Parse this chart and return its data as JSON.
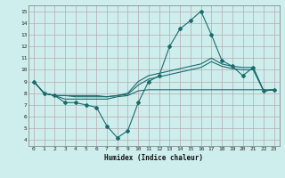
{
  "title": "",
  "xlabel": "Humidex (Indice chaleur)",
  "ylabel": "",
  "bg_color": "#ceeeed",
  "grid_color": "#b8a8b0",
  "line_color": "#1a6b6b",
  "xlim": [
    -0.5,
    23.5
  ],
  "ylim": [
    3.5,
    15.5
  ],
  "xticks": [
    0,
    1,
    2,
    3,
    4,
    5,
    6,
    7,
    8,
    9,
    10,
    11,
    12,
    13,
    14,
    15,
    16,
    17,
    18,
    19,
    20,
    21,
    22,
    23
  ],
  "yticks": [
    4,
    5,
    6,
    7,
    8,
    9,
    10,
    11,
    12,
    13,
    14,
    15
  ],
  "line1_x": [
    0,
    1,
    2,
    3,
    4,
    5,
    6,
    7,
    8,
    9,
    10,
    11,
    12,
    13,
    14,
    15,
    16,
    17,
    18,
    19,
    20,
    21,
    22,
    23
  ],
  "line1_y": [
    9.0,
    8.0,
    7.8,
    7.2,
    7.2,
    7.0,
    6.8,
    5.2,
    4.2,
    4.8,
    7.2,
    9.0,
    9.5,
    12.0,
    13.5,
    14.2,
    15.0,
    13.0,
    10.8,
    10.3,
    9.5,
    10.2,
    8.2,
    8.3
  ],
  "line2_x": [
    0,
    1,
    2,
    3,
    4,
    5,
    6,
    7,
    8,
    9,
    10,
    11,
    12,
    13,
    14,
    15,
    16,
    17,
    18,
    19,
    20,
    21,
    22,
    23
  ],
  "line2_y": [
    9.0,
    8.0,
    7.8,
    7.8,
    7.8,
    7.8,
    7.8,
    7.7,
    7.8,
    8.0,
    9.0,
    9.5,
    9.7,
    9.9,
    10.1,
    10.3,
    10.5,
    11.0,
    10.5,
    10.3,
    10.2,
    10.2,
    8.2,
    8.3
  ],
  "line3_x": [
    0,
    1,
    2,
    3,
    4,
    5,
    6,
    7,
    8,
    9,
    10,
    11,
    12,
    13,
    14,
    15,
    16,
    17,
    18,
    19,
    20,
    21,
    22,
    23
  ],
  "line3_y": [
    9.0,
    8.0,
    7.8,
    7.8,
    7.7,
    7.7,
    7.7,
    7.7,
    7.8,
    7.9,
    8.7,
    9.2,
    9.4,
    9.6,
    9.8,
    10.0,
    10.2,
    10.7,
    10.3,
    10.1,
    10.0,
    10.0,
    8.2,
    8.3
  ],
  "line4_x": [
    0,
    1,
    2,
    3,
    4,
    5,
    6,
    7,
    8,
    9,
    10,
    11,
    12,
    13,
    14,
    15,
    16,
    17,
    18,
    19,
    20,
    21,
    22,
    23
  ],
  "line4_y": [
    9.0,
    8.0,
    7.8,
    7.5,
    7.5,
    7.5,
    7.5,
    7.5,
    7.7,
    7.8,
    8.2,
    8.3,
    8.3,
    8.3,
    8.3,
    8.3,
    8.3,
    8.3,
    8.3,
    8.3,
    8.3,
    8.3,
    8.3,
    8.3
  ]
}
